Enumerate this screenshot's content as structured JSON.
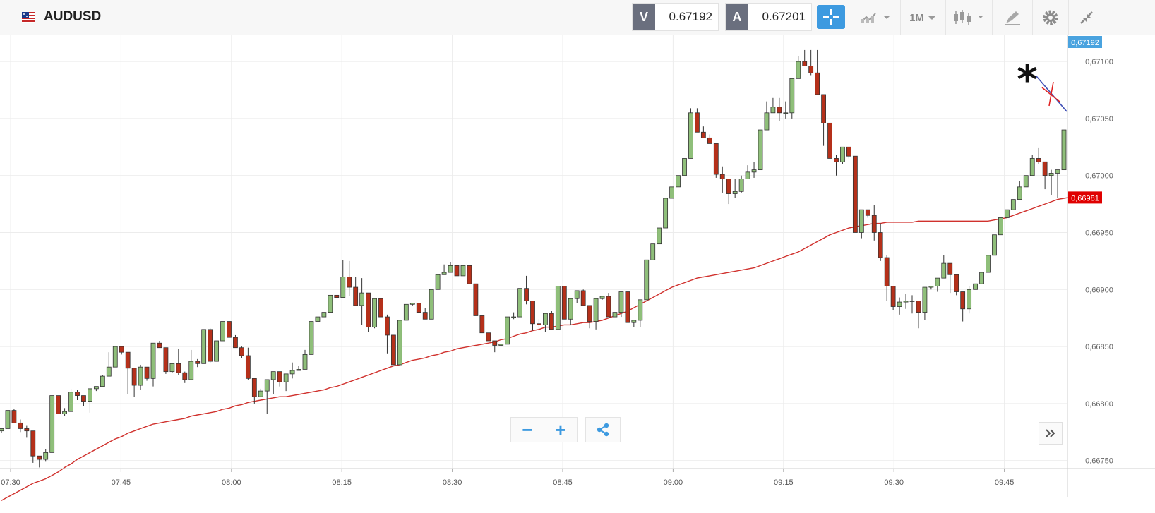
{
  "toolbar": {
    "symbol": "AUDUSD",
    "sell_label": "V",
    "sell_price": "0.67192",
    "buy_label": "A",
    "buy_price": "0.67201",
    "timeframe": "1M"
  },
  "colors": {
    "up": "#8fbf7a",
    "down": "#b5301a",
    "ma": "#d0312d",
    "last_price": "#4aa3df",
    "ma_badge": "#e00000"
  },
  "zoom": {
    "minus": "−",
    "plus": "+"
  },
  "chart_data": {
    "type": "candlestick",
    "y_ticks": [
      "0,66750",
      "0,66800",
      "0,66850",
      "0,66900",
      "0,66950",
      "0,67000",
      "0,67050",
      "0,67100"
    ],
    "x_ticks": [
      "07:30",
      "07:45",
      "08:00",
      "08:15",
      "08:30",
      "08:45",
      "09:00",
      "09:15",
      "09:30",
      "09:45"
    ],
    "ylim": [
      0.66743,
      0.67118
    ],
    "last_price_label": "0,67192",
    "ma_label": "0,66981",
    "annotation": "*",
    "candles": [
      [
        0.66776,
        0.66778,
        0.66774,
        0.66778
      ],
      [
        0.66778,
        0.66794,
        0.66794,
        0.66779
      ],
      [
        0.66794,
        0.66783,
        0.66795,
        0.66783
      ],
      [
        0.66783,
        0.66778,
        0.66786,
        0.66775
      ],
      [
        0.66778,
        0.66776,
        0.66781,
        0.6677
      ],
      [
        0.66776,
        0.66754,
        0.66776,
        0.66748
      ],
      [
        0.66754,
        0.66751,
        0.66751,
        0.66744
      ],
      [
        0.66751,
        0.66757,
        0.6676,
        0.66749
      ],
      [
        0.66757,
        0.66807,
        0.66807,
        0.66757
      ],
      [
        0.66807,
        0.66791,
        0.66807,
        0.66791
      ],
      [
        0.66791,
        0.66793,
        0.66796,
        0.66789
      ],
      [
        0.66793,
        0.6681,
        0.66813,
        0.66793
      ],
      [
        0.6681,
        0.66807,
        0.66812,
        0.66803
      ],
      [
        0.66807,
        0.66802,
        0.66807,
        0.66798
      ],
      [
        0.66802,
        0.66813,
        0.66813,
        0.66792
      ],
      [
        0.66813,
        0.66815,
        0.66815,
        0.66811
      ],
      [
        0.66815,
        0.66824,
        0.66825,
        0.66815
      ],
      [
        0.66824,
        0.66832,
        0.66845,
        0.66824
      ],
      [
        0.66832,
        0.6685,
        0.6685,
        0.66832
      ],
      [
        0.6685,
        0.66845,
        0.6685,
        0.66843
      ],
      [
        0.66845,
        0.66831,
        0.66845,
        0.66808
      ],
      [
        0.66831,
        0.66816,
        0.66831,
        0.66806
      ],
      [
        0.66816,
        0.66832,
        0.66834,
        0.66812
      ],
      [
        0.66832,
        0.66822,
        0.66832,
        0.6682
      ],
      [
        0.66822,
        0.66853,
        0.66853,
        0.66815
      ],
      [
        0.66853,
        0.66849,
        0.66855,
        0.66849
      ],
      [
        0.66849,
        0.66828,
        0.66849,
        0.66826
      ],
      [
        0.66828,
        0.66835,
        0.66835,
        0.66827
      ],
      [
        0.66835,
        0.66827,
        0.66848,
        0.66825
      ],
      [
        0.66827,
        0.66821,
        0.66828,
        0.66818
      ],
      [
        0.66821,
        0.66837,
        0.66847,
        0.66821
      ],
      [
        0.66837,
        0.66835,
        0.66839,
        0.66832
      ],
      [
        0.66835,
        0.66865,
        0.66865,
        0.66835
      ],
      [
        0.66865,
        0.66837,
        0.66866,
        0.66836
      ],
      [
        0.66837,
        0.66855,
        0.66855,
        0.66837
      ],
      [
        0.66855,
        0.66872,
        0.66872,
        0.66855
      ],
      [
        0.66872,
        0.66858,
        0.66878,
        0.66858
      ],
      [
        0.66858,
        0.66849,
        0.6686,
        0.66849
      ],
      [
        0.66849,
        0.66842,
        0.6685,
        0.6684
      ],
      [
        0.66842,
        0.66822,
        0.66849,
        0.66821
      ],
      [
        0.66822,
        0.66806,
        0.66822,
        0.668
      ],
      [
        0.66806,
        0.66811,
        0.66813,
        0.66806
      ],
      [
        0.66811,
        0.66821,
        0.66821,
        0.66791
      ],
      [
        0.66821,
        0.66828,
        0.66828,
        0.66808
      ],
      [
        0.66828,
        0.66819,
        0.66828,
        0.66815
      ],
      [
        0.66819,
        0.66826,
        0.66826,
        0.66811
      ],
      [
        0.66826,
        0.66829,
        0.66836,
        0.66822
      ],
      [
        0.66829,
        0.6683,
        0.66833,
        0.66829
      ],
      [
        0.6683,
        0.66843,
        0.66847,
        0.6683
      ],
      [
        0.66843,
        0.66872,
        0.66872,
        0.66843
      ],
      [
        0.66872,
        0.66876,
        0.66876,
        0.66872
      ],
      [
        0.66876,
        0.6688,
        0.6688,
        0.66876
      ],
      [
        0.6688,
        0.66895,
        0.66895,
        0.6688
      ],
      [
        0.66895,
        0.66893,
        0.66895,
        0.66893
      ],
      [
        0.66893,
        0.66911,
        0.66926,
        0.66893
      ],
      [
        0.66911,
        0.66902,
        0.66925,
        0.66894
      ],
      [
        0.66902,
        0.66886,
        0.66911,
        0.66886
      ],
      [
        0.66886,
        0.66897,
        0.6691,
        0.66869
      ],
      [
        0.66897,
        0.66867,
        0.66897,
        0.66863
      ],
      [
        0.66867,
        0.66892,
        0.66892,
        0.66866
      ],
      [
        0.66892,
        0.66876,
        0.66892,
        0.6686
      ],
      [
        0.66876,
        0.6686,
        0.66878,
        0.66844
      ],
      [
        0.6686,
        0.66834,
        0.6686,
        0.66834
      ],
      [
        0.66834,
        0.66873,
        0.66873,
        0.66836
      ],
      [
        0.66873,
        0.66887,
        0.66887,
        0.66873
      ],
      [
        0.66887,
        0.66888,
        0.66888,
        0.66886
      ],
      [
        0.66888,
        0.6688,
        0.66888,
        0.6688
      ],
      [
        0.6688,
        0.66874,
        0.66884,
        0.66874
      ],
      [
        0.66874,
        0.669,
        0.669,
        0.66874
      ],
      [
        0.669,
        0.66913,
        0.66913,
        0.669
      ],
      [
        0.66913,
        0.66915,
        0.66922,
        0.66913
      ],
      [
        0.66915,
        0.66921,
        0.66924,
        0.66915
      ],
      [
        0.66921,
        0.66912,
        0.66921,
        0.66912
      ],
      [
        0.66912,
        0.66921,
        0.66921,
        0.66912
      ],
      [
        0.66921,
        0.66905,
        0.66921,
        0.66905
      ],
      [
        0.66905,
        0.66877,
        0.66905,
        0.66877
      ],
      [
        0.66877,
        0.66862,
        0.66877,
        0.66862
      ],
      [
        0.66862,
        0.66855,
        0.66862,
        0.66855
      ],
      [
        0.66855,
        0.66851,
        0.66851,
        0.66845
      ],
      [
        0.66851,
        0.66852,
        0.66852,
        0.6685
      ],
      [
        0.66852,
        0.66876,
        0.66876,
        0.66852
      ],
      [
        0.66876,
        0.66876,
        0.6688,
        0.66874
      ],
      [
        0.66876,
        0.66901,
        0.66901,
        0.66876
      ],
      [
        0.66901,
        0.6689,
        0.66912,
        0.66887
      ],
      [
        0.6689,
        0.6687,
        0.6689,
        0.66864
      ],
      [
        0.6687,
        0.66869,
        0.66874,
        0.66864
      ],
      [
        0.66869,
        0.66879,
        0.66879,
        0.66863
      ],
      [
        0.66879,
        0.66865,
        0.66881,
        0.66865
      ],
      [
        0.66865,
        0.66903,
        0.66903,
        0.66865
      ],
      [
        0.66903,
        0.66874,
        0.66903,
        0.66874
      ],
      [
        0.66874,
        0.66892,
        0.66892,
        0.66869
      ],
      [
        0.66892,
        0.66899,
        0.66899,
        0.66888
      ],
      [
        0.66899,
        0.66886,
        0.669,
        0.66886
      ],
      [
        0.66886,
        0.66872,
        0.66886,
        0.66866
      ],
      [
        0.66872,
        0.66892,
        0.66892,
        0.66865
      ],
      [
        0.66892,
        0.66894,
        0.66894,
        0.66891
      ],
      [
        0.66894,
        0.66876,
        0.66897,
        0.66876
      ],
      [
        0.66876,
        0.6688,
        0.6688,
        0.66877
      ],
      [
        0.6688,
        0.66898,
        0.66898,
        0.66876
      ],
      [
        0.66898,
        0.66871,
        0.66898,
        0.66871
      ],
      [
        0.66871,
        0.66873,
        0.66873,
        0.66867
      ],
      [
        0.66873,
        0.66891,
        0.66891,
        0.66867
      ],
      [
        0.66891,
        0.66926,
        0.66926,
        0.66891
      ],
      [
        0.66926,
        0.6694,
        0.6694,
        0.66926
      ],
      [
        0.6694,
        0.66954,
        0.66954,
        0.6694
      ],
      [
        0.66954,
        0.6698,
        0.6698,
        0.66954
      ],
      [
        0.6698,
        0.6699,
        0.6699,
        0.6698
      ],
      [
        0.6699,
        0.67,
        0.67,
        0.6699
      ],
      [
        0.67,
        0.67015,
        0.67015,
        0.67
      ],
      [
        0.67015,
        0.67055,
        0.67059,
        0.67015
      ],
      [
        0.67055,
        0.67038,
        0.67059,
        0.67038
      ],
      [
        0.67038,
        0.67033,
        0.67043,
        0.67033
      ],
      [
        0.67033,
        0.67028,
        0.67036,
        0.67028
      ],
      [
        0.67028,
        0.67001,
        0.67028,
        0.66998
      ],
      [
        0.67001,
        0.66997,
        0.67008,
        0.66985
      ],
      [
        0.66997,
        0.66984,
        0.66997,
        0.66975
      ],
      [
        0.66984,
        0.66986,
        0.66997,
        0.6698
      ],
      [
        0.66986,
        0.66997,
        0.67,
        0.66985
      ],
      [
        0.66997,
        0.67003,
        0.67009,
        0.66997
      ],
      [
        0.67003,
        0.67005,
        0.67012,
        0.66998
      ],
      [
        0.67005,
        0.6704,
        0.6704,
        0.67005
      ],
      [
        0.6704,
        0.67055,
        0.67065,
        0.6704
      ],
      [
        0.67055,
        0.6706,
        0.67068,
        0.67055
      ],
      [
        0.6706,
        0.67055,
        0.67068,
        0.67048
      ],
      [
        0.67055,
        0.67055,
        0.67065,
        0.6705
      ],
      [
        0.67055,
        0.67085,
        0.67085,
        0.6705
      ],
      [
        0.67085,
        0.671,
        0.67105,
        0.67085
      ],
      [
        0.671,
        0.67096,
        0.6711,
        0.67096
      ],
      [
        0.67096,
        0.6709,
        0.6711,
        0.67088
      ],
      [
        0.6709,
        0.67071,
        0.6711,
        0.67071
      ],
      [
        0.67071,
        0.67046,
        0.67071,
        0.67026
      ],
      [
        0.67046,
        0.67015,
        0.67046,
        0.67015
      ],
      [
        0.67015,
        0.67012,
        0.67018,
        0.67
      ],
      [
        0.67012,
        0.67025,
        0.67025,
        0.6701
      ],
      [
        0.67025,
        0.67017,
        0.67025,
        0.67015
      ],
      [
        0.67017,
        0.6695,
        0.67017,
        0.6695
      ],
      [
        0.6695,
        0.6697,
        0.6697,
        0.66945
      ],
      [
        0.6697,
        0.66965,
        0.6697,
        0.66963
      ],
      [
        0.66965,
        0.6695,
        0.66974,
        0.66943
      ],
      [
        0.6695,
        0.66928,
        0.66958,
        0.66925
      ],
      [
        0.66928,
        0.66903,
        0.6693,
        0.6689
      ],
      [
        0.66903,
        0.66885,
        0.66903,
        0.66882
      ],
      [
        0.66885,
        0.66889,
        0.66893,
        0.66878
      ],
      [
        0.66889,
        0.6689,
        0.66896,
        0.66883
      ],
      [
        0.6689,
        0.6689,
        0.66895,
        0.66879
      ],
      [
        0.6689,
        0.6688,
        0.6689,
        0.66866
      ],
      [
        0.6688,
        0.66902,
        0.66902,
        0.66873
      ],
      [
        0.66902,
        0.66903,
        0.66903,
        0.669
      ],
      [
        0.66903,
        0.6691,
        0.6691,
        0.66898
      ],
      [
        0.6691,
        0.66923,
        0.6693,
        0.6691
      ],
      [
        0.66923,
        0.66913,
        0.66923,
        0.66897
      ],
      [
        0.66913,
        0.66898,
        0.66913,
        0.66895
      ],
      [
        0.66898,
        0.66883,
        0.66898,
        0.66872
      ],
      [
        0.66883,
        0.669,
        0.66903,
        0.66879
      ],
      [
        0.669,
        0.66905,
        0.66905,
        0.669
      ],
      [
        0.66905,
        0.66915,
        0.66915,
        0.66905
      ],
      [
        0.66915,
        0.6693,
        0.6693,
        0.66915
      ],
      [
        0.6693,
        0.66948,
        0.66948,
        0.6693
      ],
      [
        0.66948,
        0.66963,
        0.66963,
        0.66948
      ],
      [
        0.66963,
        0.6697,
        0.6697,
        0.66963
      ],
      [
        0.6697,
        0.66979,
        0.66979,
        0.6697
      ],
      [
        0.66979,
        0.6699,
        0.66995,
        0.66979
      ],
      [
        0.6699,
        0.67,
        0.67,
        0.6699
      ],
      [
        0.67,
        0.67015,
        0.67018,
        0.67
      ],
      [
        0.67015,
        0.67012,
        0.67024,
        0.6701
      ],
      [
        0.67012,
        0.67,
        0.67012,
        0.66988
      ],
      [
        0.67,
        0.67002,
        0.67005,
        0.66983
      ],
      [
        0.67002,
        0.67005,
        0.67005,
        0.6698
      ],
      [
        0.67005,
        0.6704,
        0.6704,
        0.67005
      ]
    ],
    "ma": [
      0.66715,
      0.66718,
      0.66721,
      0.66724,
      0.66727,
      0.6673,
      0.66732,
      0.66734,
      0.66737,
      0.6674,
      0.66744,
      0.66747,
      0.66751,
      0.66754,
      0.66757,
      0.6676,
      0.66763,
      0.66766,
      0.66769,
      0.66771,
      0.66774,
      0.66776,
      0.66778,
      0.6678,
      0.66782,
      0.66783,
      0.66784,
      0.66785,
      0.66786,
      0.66787,
      0.66789,
      0.6679,
      0.66791,
      0.66792,
      0.66793,
      0.66795,
      0.66796,
      0.66798,
      0.66799,
      0.66801,
      0.66802,
      0.66803,
      0.66804,
      0.66805,
      0.66806,
      0.66806,
      0.66807,
      0.66808,
      0.66809,
      0.6681,
      0.66811,
      0.66812,
      0.66814,
      0.66815,
      0.66817,
      0.66819,
      0.66821,
      0.66823,
      0.66825,
      0.66827,
      0.66829,
      0.66831,
      0.66833,
      0.66834,
      0.66836,
      0.66838,
      0.66839,
      0.6684,
      0.66842,
      0.66843,
      0.66845,
      0.66846,
      0.66848,
      0.66849,
      0.6685,
      0.66851,
      0.66852,
      0.66853,
      0.66854,
      0.66856,
      0.66857,
      0.66859,
      0.66861,
      0.66862,
      0.66864,
      0.66865,
      0.66867,
      0.66867,
      0.66868,
      0.66869,
      0.66869,
      0.6687,
      0.66871,
      0.66871,
      0.66872,
      0.66873,
      0.66875,
      0.66877,
      0.66879,
      0.66881,
      0.66884,
      0.66887,
      0.6689,
      0.66893,
      0.66896,
      0.66899,
      0.66902,
      0.66904,
      0.66906,
      0.66908,
      0.6691,
      0.66911,
      0.66912,
      0.66913,
      0.66914,
      0.66915,
      0.66916,
      0.66917,
      0.66918,
      0.66919,
      0.66921,
      0.66923,
      0.66925,
      0.66927,
      0.66929,
      0.66931,
      0.66933,
      0.66936,
      0.66939,
      0.66942,
      0.66945,
      0.66948,
      0.6695,
      0.66952,
      0.66954,
      0.66955,
      0.66956,
      0.66957,
      0.66958,
      0.66958,
      0.66959,
      0.66959,
      0.66959,
      0.66959,
      0.66959,
      0.6696,
      0.6696,
      0.6696,
      0.6696,
      0.6696,
      0.6696,
      0.6696,
      0.6696,
      0.6696,
      0.6696,
      0.6696,
      0.6696,
      0.66961,
      0.66962,
      0.66963,
      0.66965,
      0.66967,
      0.66969,
      0.66971,
      0.66973,
      0.66975,
      0.66977,
      0.66979,
      0.6698,
      0.66981,
      0.66981,
      0.66981,
      0.66981,
      0.66981,
      0.66981
    ]
  }
}
